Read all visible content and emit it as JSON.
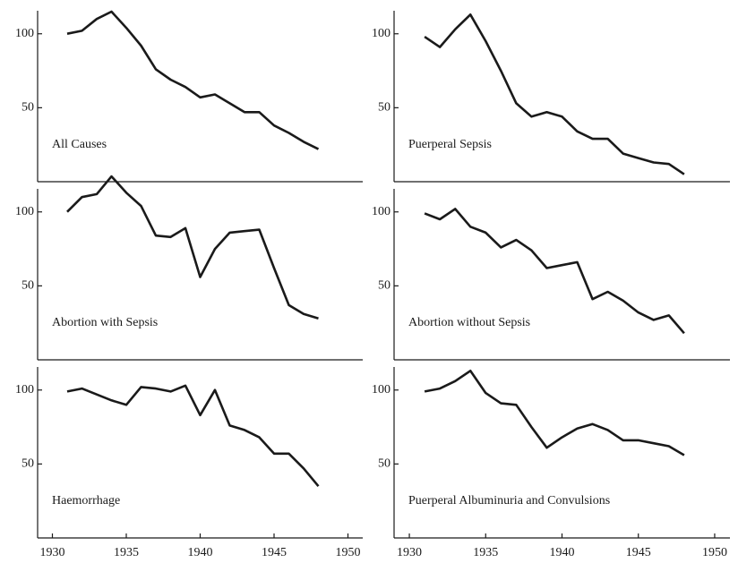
{
  "chart_data": [
    {
      "type": "line",
      "title": "All Causes",
      "x": [
        1931,
        1932,
        1933,
        1934,
        1935,
        1936,
        1937,
        1938,
        1939,
        1940,
        1941,
        1942,
        1943,
        1944,
        1945,
        1946,
        1947,
        1948
      ],
      "values": [
        100,
        102,
        110,
        115,
        104,
        92,
        76,
        69,
        64,
        57,
        59,
        53,
        47,
        47,
        38,
        33,
        27,
        22
      ],
      "color": "#1a1a1a",
      "xlim": [
        1929,
        1951
      ],
      "ylim": [
        0,
        118
      ],
      "yticks": [
        50,
        100
      ]
    },
    {
      "type": "line",
      "title": "Puerperal Sepsis",
      "x": [
        1931,
        1932,
        1933,
        1934,
        1935,
        1936,
        1937,
        1938,
        1939,
        1940,
        1941,
        1942,
        1943,
        1944,
        1945,
        1946,
        1947,
        1948
      ],
      "values": [
        98,
        91,
        103,
        113,
        95,
        75,
        53,
        44,
        47,
        44,
        34,
        29,
        29,
        19,
        16,
        13,
        12,
        5
      ],
      "color": "#1a1a1a",
      "xlim": [
        1929,
        1951
      ],
      "ylim": [
        0,
        118
      ],
      "yticks": [
        50,
        100
      ]
    },
    {
      "type": "line",
      "title": "Abortion with Sepsis",
      "x": [
        1931,
        1932,
        1933,
        1934,
        1935,
        1936,
        1937,
        1938,
        1939,
        1940,
        1941,
        1942,
        1943,
        1944,
        1945,
        1946,
        1947,
        1948
      ],
      "values": [
        100,
        110,
        112,
        124,
        113,
        104,
        84,
        83,
        89,
        56,
        75,
        86,
        87,
        88,
        62,
        37,
        31,
        28
      ],
      "color": "#1a1a1a",
      "xlim": [
        1929,
        1951
      ],
      "ylim": [
        0,
        118
      ],
      "yticks": [
        50,
        100
      ]
    },
    {
      "type": "line",
      "title": "Abortion without Sepsis",
      "x": [
        1931,
        1932,
        1933,
        1934,
        1935,
        1936,
        1937,
        1938,
        1939,
        1940,
        1941,
        1942,
        1943,
        1944,
        1945,
        1946,
        1947,
        1948
      ],
      "values": [
        99,
        95,
        102,
        90,
        86,
        76,
        81,
        74,
        62,
        64,
        66,
        41,
        46,
        40,
        32,
        27,
        30,
        18
      ],
      "color": "#1a1a1a",
      "xlim": [
        1929,
        1951
      ],
      "ylim": [
        0,
        118
      ],
      "yticks": [
        50,
        100
      ]
    },
    {
      "type": "line",
      "title": "Haemorrhage",
      "x": [
        1931,
        1932,
        1933,
        1934,
        1935,
        1936,
        1937,
        1938,
        1939,
        1940,
        1941,
        1942,
        1943,
        1944,
        1945,
        1946,
        1947,
        1948
      ],
      "values": [
        99,
        101,
        97,
        93,
        90,
        102,
        101,
        99,
        103,
        83,
        100,
        76,
        73,
        68,
        57,
        57,
        47,
        35
      ],
      "color": "#1a1a1a",
      "xlim": [
        1929,
        1951
      ],
      "ylim": [
        0,
        118
      ],
      "yticks": [
        50,
        100
      ],
      "xticks": [
        1930,
        1935,
        1940,
        1945,
        1950
      ]
    },
    {
      "type": "line",
      "title": "Puerperal Albuminuria and Convulsions",
      "x": [
        1931,
        1932,
        1933,
        1934,
        1935,
        1936,
        1937,
        1938,
        1939,
        1940,
        1941,
        1942,
        1943,
        1944,
        1945,
        1946,
        1947,
        1948
      ],
      "values": [
        99,
        101,
        106,
        113,
        98,
        91,
        90,
        75,
        61,
        68,
        74,
        77,
        73,
        66,
        66,
        64,
        62,
        56
      ],
      "color": "#1a1a1a",
      "xlim": [
        1929,
        1951
      ],
      "ylim": [
        0,
        118
      ],
      "yticks": [
        50,
        100
      ],
      "xticks": [
        1930,
        1935,
        1940,
        1945,
        1950
      ]
    }
  ]
}
